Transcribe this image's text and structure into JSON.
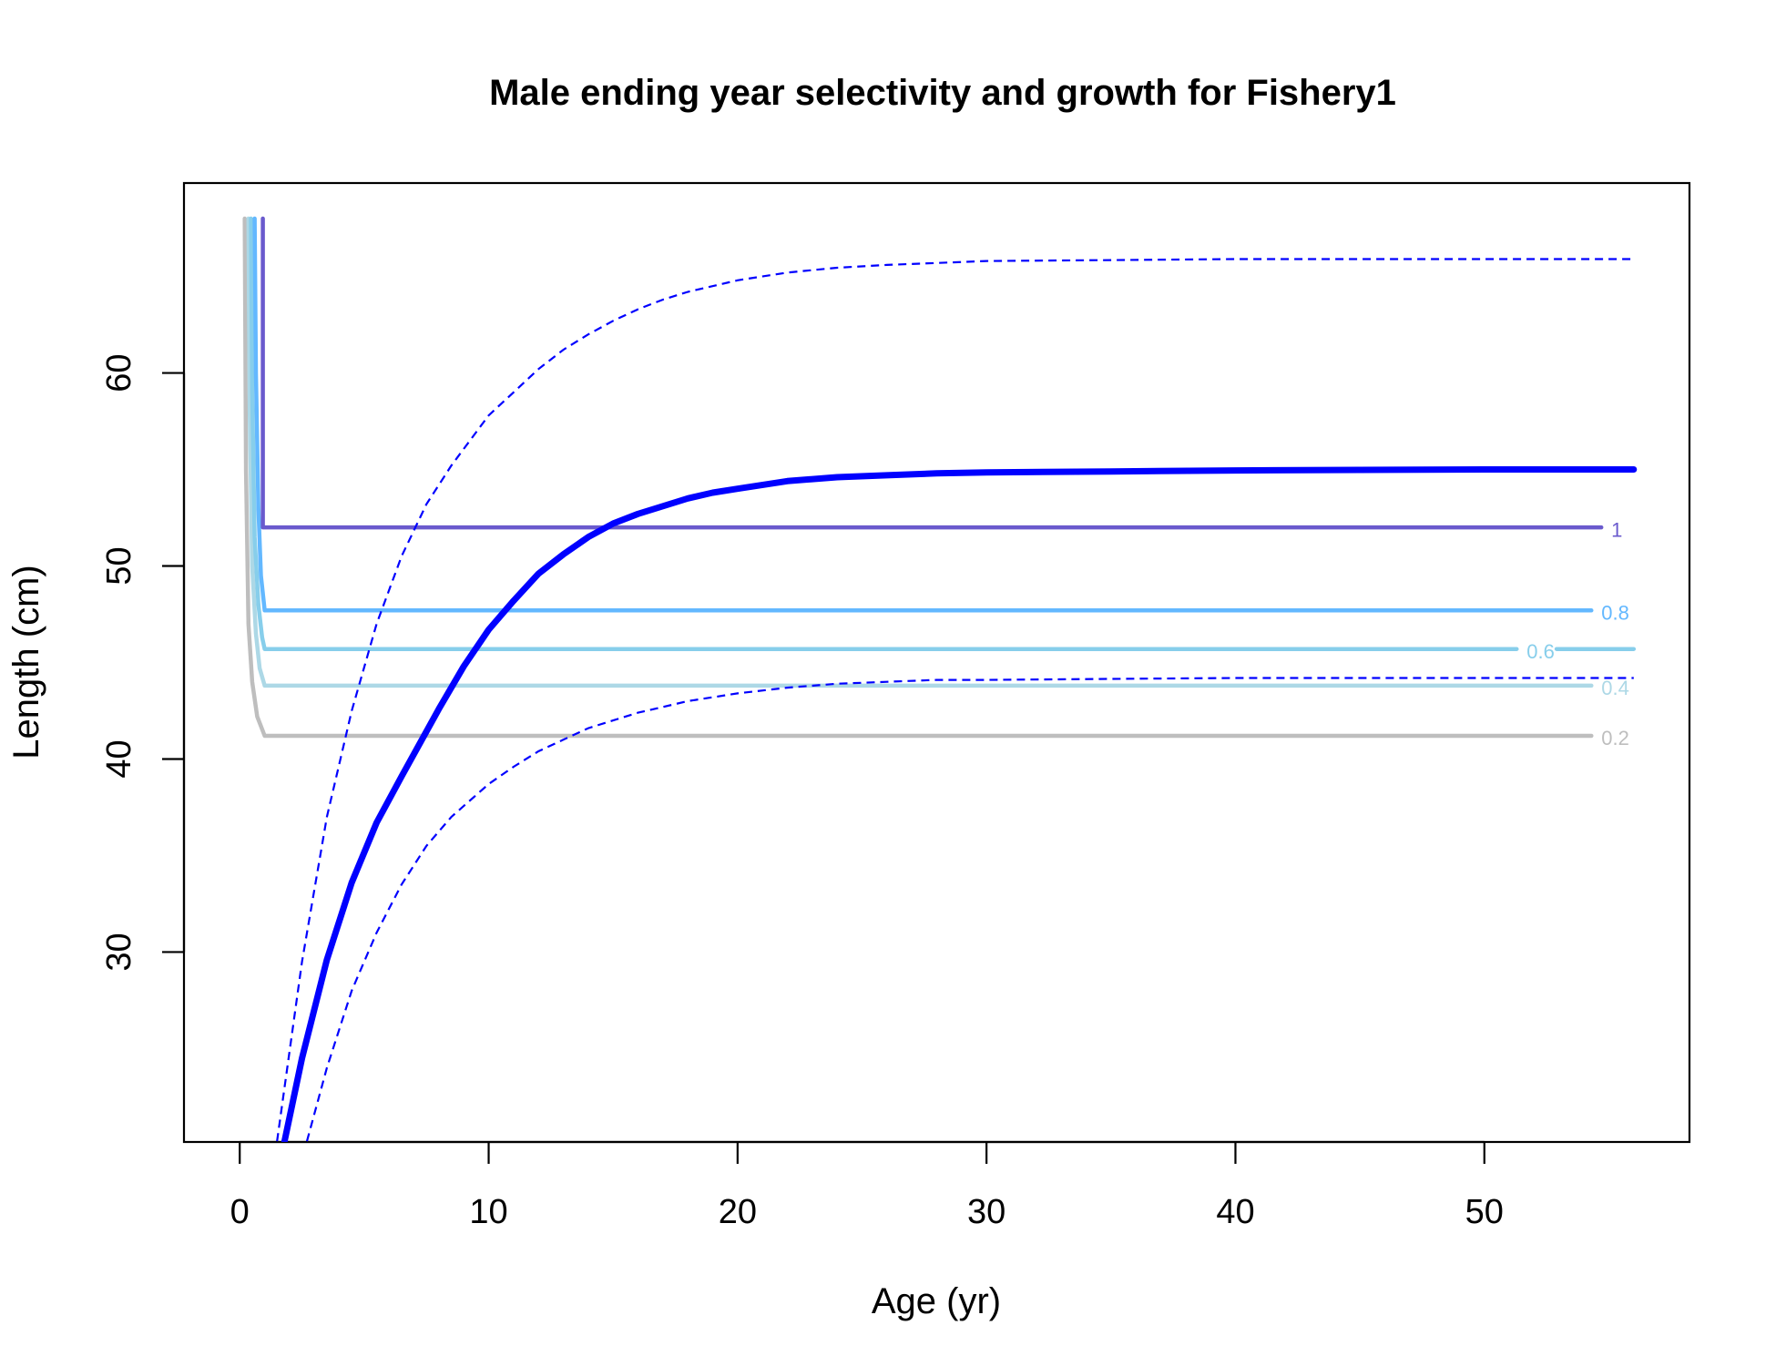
{
  "chart_data": {
    "type": "line",
    "title": "Male ending year selectivity and growth for Fishery1",
    "xlabel": "Age (yr)",
    "ylabel": "Length (cm)",
    "xlim": [
      -2.24,
      58.24
    ],
    "ylim": [
      20.16,
      69.84
    ],
    "x_ticks": [
      0,
      10,
      20,
      30,
      40,
      50
    ],
    "y_ticks": [
      30,
      40,
      50,
      60
    ],
    "grid": false,
    "legend": "none",
    "growth": {
      "color": "#0000ff",
      "mean": {
        "x": [
          1.8,
          2.5,
          3.5,
          4.5,
          5.5,
          6.5,
          8,
          9,
          10,
          11,
          12,
          13,
          14,
          15,
          16,
          17,
          18,
          19,
          20,
          22,
          24,
          26,
          28,
          30,
          35,
          40,
          45,
          50,
          56
        ],
        "y": [
          20.2,
          24.5,
          29.6,
          33.6,
          36.7,
          39.1,
          42.6,
          44.8,
          46.7,
          48.2,
          49.6,
          50.6,
          51.5,
          52.2,
          52.7,
          53.1,
          53.5,
          53.8,
          54.0,
          54.4,
          54.6,
          54.7,
          54.8,
          54.85,
          54.9,
          54.95,
          54.98,
          55.0,
          55.0
        ]
      },
      "upper": {
        "x": [
          1.5,
          2.5,
          3.5,
          4.5,
          5.5,
          6.5,
          7.5,
          8.5,
          10,
          11,
          12,
          13,
          14,
          15,
          16,
          17,
          18,
          20,
          22,
          24,
          26,
          28,
          30,
          35,
          40,
          45,
          50,
          56
        ],
        "y": [
          20.2,
          29.5,
          37.0,
          42.5,
          47.0,
          50.5,
          53.2,
          55.2,
          57.8,
          59.0,
          60.2,
          61.2,
          62.0,
          62.7,
          63.3,
          63.8,
          64.2,
          64.8,
          65.2,
          65.45,
          65.6,
          65.7,
          65.8,
          65.85,
          65.9,
          65.9,
          65.9,
          65.9
        ]
      },
      "lower": {
        "x": [
          2.7,
          3.5,
          4.5,
          5.5,
          6.5,
          7.5,
          8.5,
          10,
          11,
          12,
          13,
          14,
          15,
          16,
          17,
          18,
          20,
          22,
          24,
          26,
          28,
          30,
          35,
          40,
          45,
          50,
          56
        ],
        "y": [
          20.2,
          24.0,
          28.0,
          31.0,
          33.5,
          35.5,
          37.0,
          38.7,
          39.6,
          40.4,
          41.0,
          41.6,
          42.0,
          42.4,
          42.7,
          43.0,
          43.4,
          43.7,
          43.9,
          44.0,
          44.1,
          44.1,
          44.15,
          44.2,
          44.2,
          44.2,
          44.2
        ]
      }
    },
    "selectivity_contours": [
      {
        "level": "1",
        "color": "#6a5acd",
        "x": [
          0.93,
          0.93,
          54.7
        ],
        "y": [
          68.0,
          52.0,
          52.0
        ],
        "label_x": 55.1,
        "label_y": 51.9
      },
      {
        "level": "0.8",
        "color": "#63b8ff",
        "x": [
          0.6,
          0.65,
          0.75,
          0.85,
          1.0,
          54.3
        ],
        "y": [
          68.0,
          60.0,
          53.0,
          49.5,
          47.7,
          47.7
        ],
        "label_x": 54.7,
        "label_y": 47.6
      },
      {
        "level": "0.6",
        "color": "#87ceeb",
        "x": [
          0.45,
          0.5,
          0.6,
          0.75,
          0.9,
          1.0,
          51.3
        ],
        "y": [
          68.0,
          59.0,
          51.5,
          48.0,
          46.3,
          45.7,
          45.7
        ],
        "label_x": 51.7,
        "label_y": 45.6,
        "x2": [
          52.9,
          56.0
        ],
        "y2": [
          45.7,
          45.7
        ]
      },
      {
        "level": "0.4",
        "color": "#add8e6",
        "x": [
          0.35,
          0.4,
          0.5,
          0.65,
          0.8,
          1.0,
          54.3
        ],
        "y": [
          68.0,
          58.0,
          50.0,
          46.5,
          44.7,
          43.8,
          43.8
        ],
        "label_x": 54.7,
        "label_y": 43.7
      },
      {
        "level": "0.2",
        "color": "#bebebe",
        "x": [
          0.2,
          0.25,
          0.35,
          0.5,
          0.7,
          1.0,
          54.3
        ],
        "y": [
          68.0,
          55.0,
          47.0,
          44.0,
          42.2,
          41.2,
          41.2
        ],
        "label_x": 54.7,
        "label_y": 41.1
      }
    ]
  }
}
